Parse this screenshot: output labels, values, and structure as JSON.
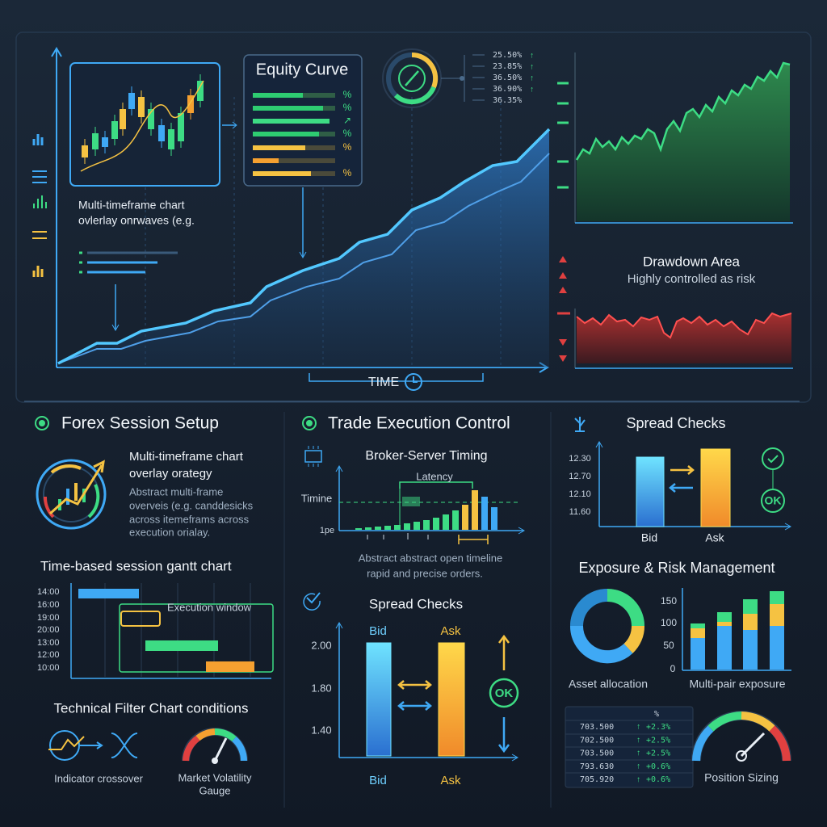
{
  "top": {
    "overlay_caption": [
      "Multi-timeframe chart",
      "ovlerlay onrwaves (e.g."
    ],
    "equity_curve": {
      "title": "Equity Curve",
      "marks": [
        "%",
        "%",
        "↗",
        "%",
        "%",
        "%"
      ]
    },
    "gauge_legend": [
      "25.50%",
      "23.85%",
      "36.50%",
      "36.90%",
      "36.35%"
    ],
    "axis_label": "TIME",
    "drawdown": {
      "title": "Drawdown Area",
      "subtitle": "Highly controlled as risk"
    }
  },
  "forex_session": {
    "title": "Forex Session Setup",
    "heading": [
      "Multi-timeframe chart",
      "overlay orategy"
    ],
    "body": [
      "Abstract multi-frame",
      "overveis (e.g. canddesicks",
      "across itemeframs across",
      "execution orialay."
    ],
    "gantt": {
      "title": "Time-based session gantt chart",
      "times": [
        "14:00",
        "16:00",
        "19:00",
        "20:00",
        "13:00",
        "12:00",
        "10:00"
      ],
      "annotation": "Execution window"
    },
    "filter": {
      "title": "Technical Filter Chart conditions",
      "crossover": "Indicator crossover",
      "gauge": [
        "Market Volatility",
        "Gauge"
      ]
    }
  },
  "trade_execution": {
    "title": "Trade Execution Control",
    "timing": {
      "title": "Broker-Server Timing",
      "latency": "Latency",
      "y_labels": [
        "Timine",
        "1pe"
      ],
      "caption": [
        "Abstract abstract open timeline",
        "rapid and precise orders."
      ]
    },
    "spread": {
      "title": "Spread Checks",
      "top_labels": [
        "Bid",
        "Ask"
      ],
      "y_labels": [
        "2.00",
        "1.80",
        "1.40"
      ],
      "ok": "OK",
      "bottom_labels": [
        "Bid",
        "Ask"
      ]
    }
  },
  "right": {
    "spread": {
      "title": "Spread Checks",
      "y_labels": [
        "12.30",
        "12.70",
        "12.10",
        "11.60"
      ],
      "ok": "OK",
      "labels": [
        "Bid",
        "Ask"
      ]
    },
    "exposure": {
      "title": "Exposure & Risk Management",
      "allocation": "Asset allocation",
      "y_labels": [
        "150",
        "100",
        "50",
        "0"
      ],
      "pairs": "Multi-pair exposure",
      "table": {
        "header": "%",
        "rows": [
          [
            "703.500",
            "+2.3%"
          ],
          [
            "702.500",
            "+2.5%"
          ],
          [
            "703.500",
            "+2.5%"
          ],
          [
            "793.630",
            "+0.6%"
          ],
          [
            "705.920",
            "+0.6%"
          ]
        ]
      },
      "sizing": "Position Sizing"
    }
  }
}
